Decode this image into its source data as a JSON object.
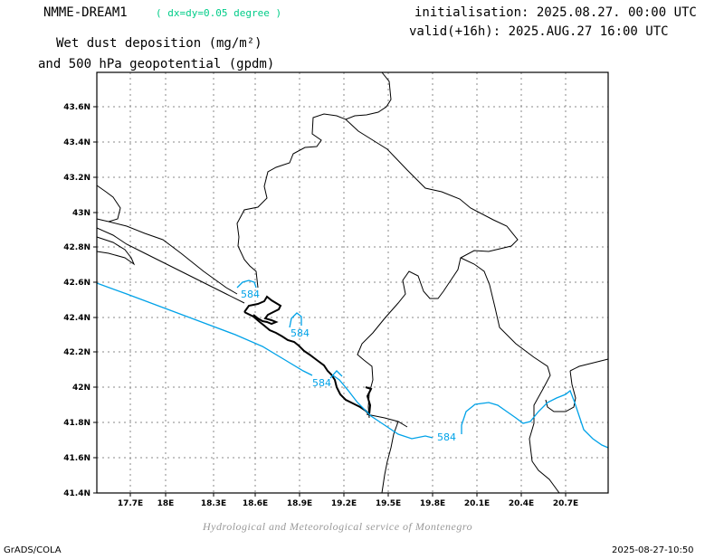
{
  "header": {
    "model_name": "NMME-DREAM1",
    "resolution": "( dx=dy=0.05 degree )",
    "title_line1": "Wet dust deposition (mg/m²)",
    "title_line2": "and 500 hPa geopotential (gpdm)",
    "init_line": "initialisation: 2025.08.27. 00:00 UTC",
    "valid_line": "valid(+16h): 2025.AUG.27 16:00 UTC"
  },
  "footer": {
    "credit": "Hydrological and Meteorological service of Montenegro",
    "software": "GrADS/COLA",
    "timestamp": "2025-08-27-10:50"
  },
  "colors": {
    "contour": "#00a2e8",
    "resolution_text": "#00cc88",
    "coastline": "#000000",
    "grid": "#888888",
    "credit_text": "#999999"
  },
  "map": {
    "lon_range": [
      17.45,
      21.1
    ],
    "lat_range": [
      41.4,
      43.75
    ],
    "lon_ticks": [
      "17.7E",
      "18E",
      "18.3E",
      "18.6E",
      "18.9E",
      "19.2E",
      "19.5E",
      "19.8E",
      "20.1E",
      "20.4E",
      "20.7E"
    ],
    "lat_ticks": [
      "41.4N",
      "41.6N",
      "41.8N",
      "42N",
      "42.2N",
      "42.4N",
      "42.6N",
      "42.8N",
      "43N",
      "43.2N",
      "43.4N",
      "43.6N"
    ],
    "contour_value": "584",
    "contour_labels": [
      "584",
      "584",
      "584",
      "584"
    ]
  }
}
